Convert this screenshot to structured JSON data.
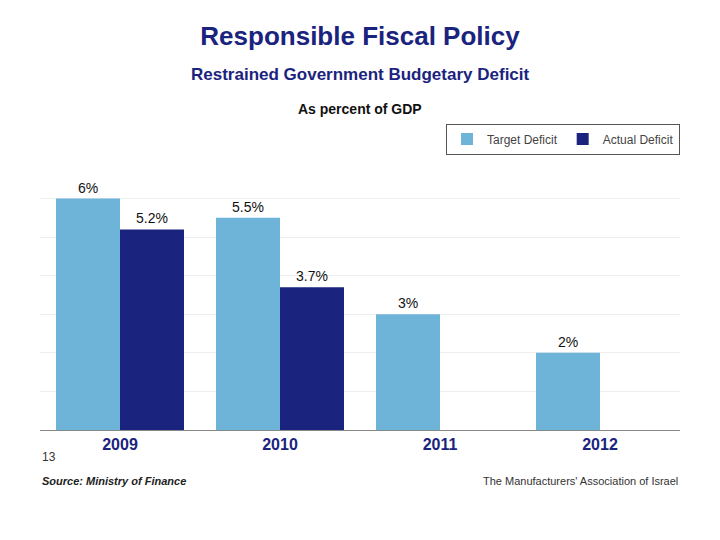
{
  "chart_data": {
    "type": "bar",
    "title": "Responsible Fiscal Policy",
    "subtitle": "Restrained Government Budgetary Deficit",
    "annotations": [
      "As percent of GDP",
      "13",
      "Source: Ministry of Finance",
      "The Manufacturers' Association of Israel"
    ],
    "categories": [
      "2009",
      "2010",
      "2011",
      "2012"
    ],
    "series": [
      {
        "name": "Target Deficit",
        "color": "#6EB4D8",
        "values": [
          6.0,
          5.5,
          3.0,
          2.0
        ],
        "value_labels": [
          "6%",
          "5.5%",
          "3%",
          "2%"
        ]
      },
      {
        "name": "Actual Deficit",
        "color": "#1A237E",
        "values": [
          5.2,
          3.7,
          null,
          null
        ],
        "value_labels": [
          "5.2%",
          "3.7%",
          null,
          null
        ]
      }
    ],
    "ylim": [
      0,
      7
    ],
    "yticks": [
      0,
      1,
      2,
      3,
      4,
      5,
      6,
      7
    ],
    "grid": true,
    "legend": "upper right",
    "data_labels": true,
    "tick_labels": "x"
  }
}
